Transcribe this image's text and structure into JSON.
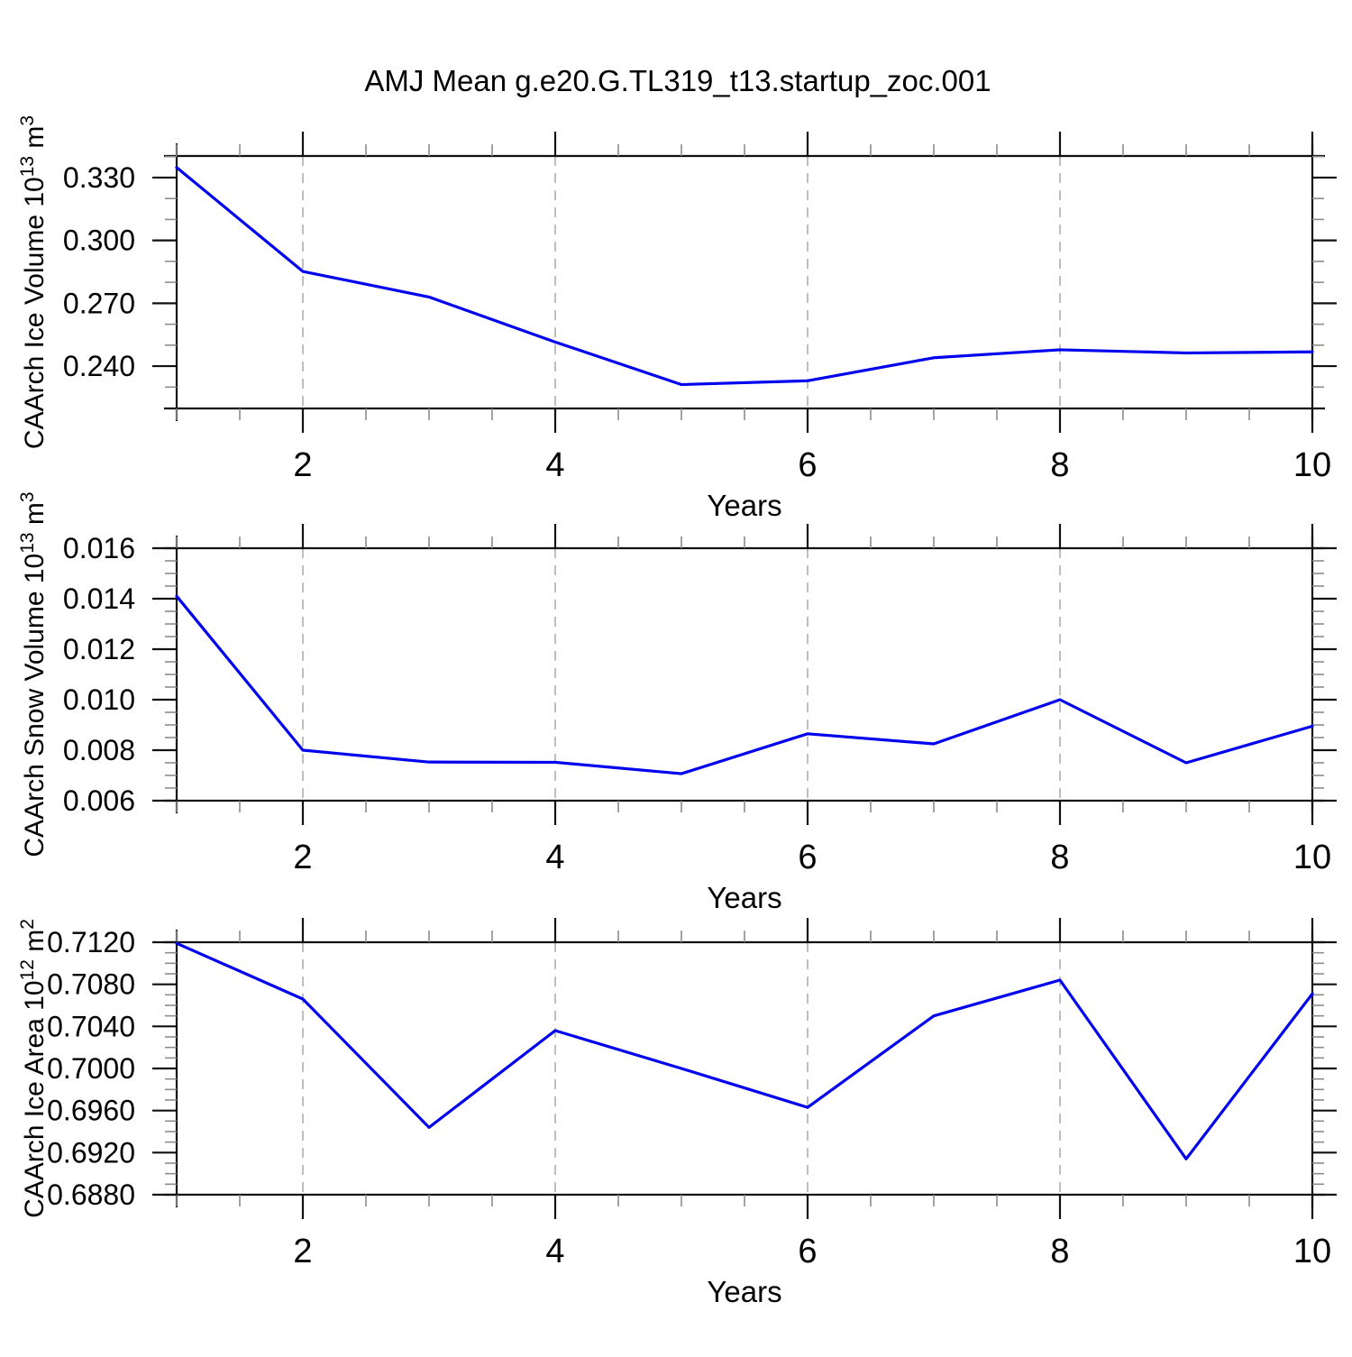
{
  "title": "AMJ Mean g.e20.G.TL319_t13.startup_zoc.001",
  "line_color": "#0000ee",
  "grid_color": "#aeaeae",
  "axis_color": "#111111",
  "minor_tick_color": "#8c8c8c",
  "x_axis": {
    "label": "Years",
    "min": 1,
    "max": 10,
    "major_ticks": [
      2,
      4,
      6,
      8,
      10
    ],
    "major_tick_labels": [
      "2",
      "4",
      "6",
      "8",
      "10"
    ],
    "minor_ticks": [
      1,
      1.5,
      2.5,
      3,
      3.5,
      4.5,
      5,
      5.5,
      6.5,
      7,
      7.5,
      8.5,
      9,
      9.5
    ],
    "gridlines": [
      2,
      4,
      6,
      8
    ]
  },
  "chart_data": [
    {
      "type": "line",
      "id": "ice-volume",
      "ylabel": "CAArch Ice Volume 10^13 m^3",
      "ylabel_segments": [
        {
          "text": "CAArch Ice Volume 10",
          "sup": false
        },
        {
          "text": "13",
          "sup": true
        },
        {
          "text": " m",
          "sup": false
        },
        {
          "text": "3",
          "sup": true
        }
      ],
      "xlabel": "Years",
      "x": [
        1,
        2,
        3,
        4,
        5,
        6,
        7,
        8,
        9,
        10
      ],
      "values": [
        0.3348,
        0.2852,
        0.273,
        0.2515,
        0.2312,
        0.233,
        0.244,
        0.2478,
        0.2463,
        0.2468
      ],
      "ylim": [
        0.2198,
        0.3403
      ],
      "yticks": [
        {
          "v": 0.33,
          "label": "0.330"
        },
        {
          "v": 0.3,
          "label": "0.300"
        },
        {
          "v": 0.27,
          "label": "0.270"
        },
        {
          "v": 0.24,
          "label": "0.240"
        }
      ],
      "yminor": [
        0.23,
        0.25,
        0.26,
        0.28,
        0.29,
        0.31,
        0.32,
        0.34
      ]
    },
    {
      "type": "line",
      "id": "snow-volume",
      "ylabel": "CAArch Snow Volume 10^13 m^3",
      "ylabel_segments": [
        {
          "text": "CAArch Snow Volume 10",
          "sup": false
        },
        {
          "text": "13",
          "sup": true
        },
        {
          "text": " m",
          "sup": false
        },
        {
          "text": "3",
          "sup": true
        }
      ],
      "xlabel": "Years",
      "x": [
        1,
        2,
        3,
        4,
        5,
        6,
        7,
        8,
        9,
        10
      ],
      "values": [
        0.0141,
        0.008,
        0.00753,
        0.00752,
        0.00707,
        0.00865,
        0.00825,
        0.01,
        0.0075,
        0.00895
      ],
      "ylim": [
        0.006,
        0.016
      ],
      "yticks": [
        {
          "v": 0.016,
          "label": "0.016"
        },
        {
          "v": 0.014,
          "label": "0.014"
        },
        {
          "v": 0.012,
          "label": "0.012"
        },
        {
          "v": 0.01,
          "label": "0.010"
        },
        {
          "v": 0.008,
          "label": "0.008"
        },
        {
          "v": 0.006,
          "label": "0.006"
        }
      ],
      "yminor": [
        0.0065,
        0.007,
        0.0075,
        0.0085,
        0.009,
        0.0095,
        0.0105,
        0.011,
        0.0115,
        0.0125,
        0.013,
        0.0135,
        0.0145,
        0.015,
        0.0155
      ]
    },
    {
      "type": "line",
      "id": "ice-area",
      "ylabel": "CAArch Ice Area 10^12 m^2",
      "ylabel_segments": [
        {
          "text": "CAArch Ice Area 10",
          "sup": false
        },
        {
          "text": "12",
          "sup": true
        },
        {
          "text": " m",
          "sup": false
        },
        {
          "text": "2",
          "sup": true
        }
      ],
      "xlabel": "Years",
      "x": [
        1,
        2,
        3,
        4,
        5,
        6,
        7,
        8,
        9,
        10
      ],
      "values": [
        0.7119,
        0.7066,
        0.6944,
        0.7036,
        0.7,
        0.6963,
        0.705,
        0.7084,
        0.6914,
        0.7071
      ],
      "ylim": [
        0.688,
        0.712
      ],
      "yticks": [
        {
          "v": 0.712,
          "label": "0.7120"
        },
        {
          "v": 0.708,
          "label": "0.7080"
        },
        {
          "v": 0.704,
          "label": "0.7040"
        },
        {
          "v": 0.7,
          "label": "0.7000"
        },
        {
          "v": 0.696,
          "label": "0.6960"
        },
        {
          "v": 0.692,
          "label": "0.6920"
        },
        {
          "v": 0.688,
          "label": "0.6880"
        }
      ],
      "yminor": [
        0.689,
        0.69,
        0.691,
        0.693,
        0.694,
        0.695,
        0.697,
        0.698,
        0.699,
        0.701,
        0.702,
        0.703,
        0.705,
        0.706,
        0.707,
        0.709,
        0.71,
        0.711
      ]
    }
  ]
}
